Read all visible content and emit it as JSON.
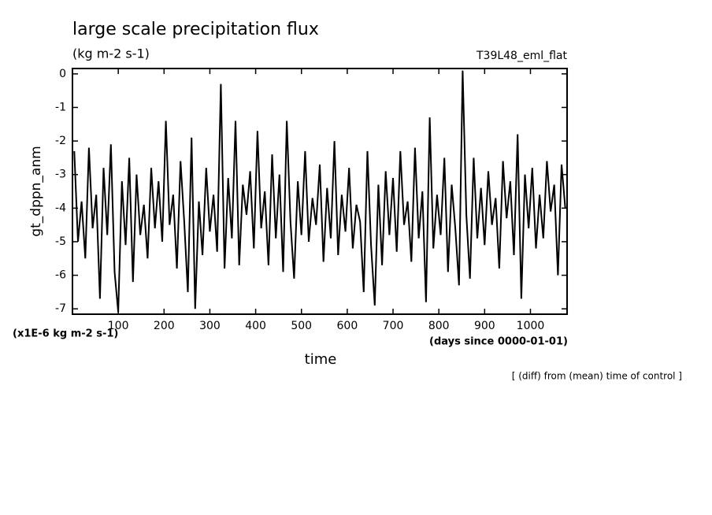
{
  "chart_data": {
    "type": "line",
    "title": "large scale precipitation flux",
    "subtitle": "(kg m-2 s-1)",
    "experiment": "T39L48_eml_flat",
    "y_label": "gt_dppn_anm",
    "y_unit": "(x1E-6 kg m-2 s-1)",
    "x_label": "time",
    "x_unit": "(days since 0000-01-01)",
    "note": "[ (diff) from (mean) time of control ]",
    "xlim": [
      0,
      1080
    ],
    "ylim": [
      -7.16,
      0.16
    ],
    "xticks": [
      100,
      200,
      300,
      400,
      500,
      600,
      700,
      800,
      900,
      1000
    ],
    "yticks": [
      -7,
      -6,
      -5,
      -4,
      -3,
      -2,
      -1,
      0
    ],
    "series": [
      {
        "color": "#000000",
        "x": [
          4,
          12,
          20,
          28,
          36,
          44,
          52,
          60,
          68,
          76,
          84,
          92,
          100,
          108,
          116,
          124,
          132,
          140,
          148,
          156,
          164,
          172,
          180,
          188,
          196,
          204,
          212,
          220,
          228,
          236,
          244,
          252,
          260,
          268,
          276,
          284,
          292,
          300,
          308,
          316,
          324,
          332,
          340,
          348,
          356,
          364,
          372,
          380,
          388,
          396,
          404,
          412,
          420,
          428,
          436,
          444,
          452,
          460,
          468,
          476,
          484,
          492,
          500,
          508,
          516,
          524,
          532,
          540,
          548,
          556,
          564,
          572,
          580,
          588,
          596,
          604,
          612,
          620,
          628,
          636,
          644,
          652,
          660,
          668,
          676,
          684,
          692,
          700,
          708,
          716,
          724,
          732,
          740,
          748,
          756,
          764,
          772,
          780,
          788,
          796,
          804,
          812,
          820,
          828,
          836,
          844,
          852,
          860,
          868,
          876,
          884,
          892,
          900,
          908,
          916,
          924,
          932,
          940,
          948,
          956,
          964,
          972,
          980,
          988,
          996,
          1004,
          1012,
          1020,
          1028,
          1036,
          1044,
          1052,
          1060,
          1068,
          1076
        ],
        "values": [
          -2.3,
          -5.0,
          -3.8,
          -5.5,
          -2.2,
          -4.6,
          -3.6,
          -6.7,
          -2.8,
          -4.8,
          -2.1,
          -5.9,
          -7.1,
          -3.2,
          -5.1,
          -2.5,
          -6.2,
          -3.0,
          -4.8,
          -3.9,
          -5.5,
          -2.8,
          -4.6,
          -3.2,
          -5.0,
          -1.4,
          -4.5,
          -3.6,
          -5.8,
          -2.6,
          -4.4,
          -6.5,
          -1.9,
          -7.0,
          -3.8,
          -5.4,
          -2.8,
          -4.7,
          -3.6,
          -5.3,
          -0.3,
          -5.8,
          -3.1,
          -4.9,
          -1.4,
          -5.7,
          -3.3,
          -4.2,
          -2.9,
          -5.2,
          -1.7,
          -4.6,
          -3.5,
          -5.7,
          -2.4,
          -4.9,
          -3.0,
          -5.9,
          -1.4,
          -4.4,
          -6.1,
          -3.2,
          -4.8,
          -2.3,
          -5.0,
          -3.7,
          -4.5,
          -2.7,
          -5.6,
          -3.4,
          -4.9,
          -2.0,
          -5.4,
          -3.6,
          -4.7,
          -2.8,
          -5.2,
          -3.9,
          -4.4,
          -6.5,
          -2.3,
          -5.1,
          -6.9,
          -3.3,
          -5.7,
          -2.9,
          -4.8,
          -3.1,
          -5.3,
          -2.3,
          -4.5,
          -3.8,
          -5.6,
          -2.2,
          -4.9,
          -3.5,
          -6.8,
          -1.3,
          -5.2,
          -3.6,
          -4.8,
          -2.5,
          -5.9,
          -3.3,
          -4.6,
          -6.3,
          0.1,
          -4.2,
          -6.1,
          -2.5,
          -4.9,
          -3.4,
          -5.1,
          -2.9,
          -4.5,
          -3.7,
          -5.8,
          -2.6,
          -4.3,
          -3.2,
          -5.4,
          -1.8,
          -6.7,
          -3.0,
          -4.6,
          -2.8,
          -5.2,
          -3.6,
          -4.9,
          -2.6,
          -4.1,
          -3.3,
          -6.0,
          -2.7,
          -4.0
        ]
      }
    ]
  }
}
